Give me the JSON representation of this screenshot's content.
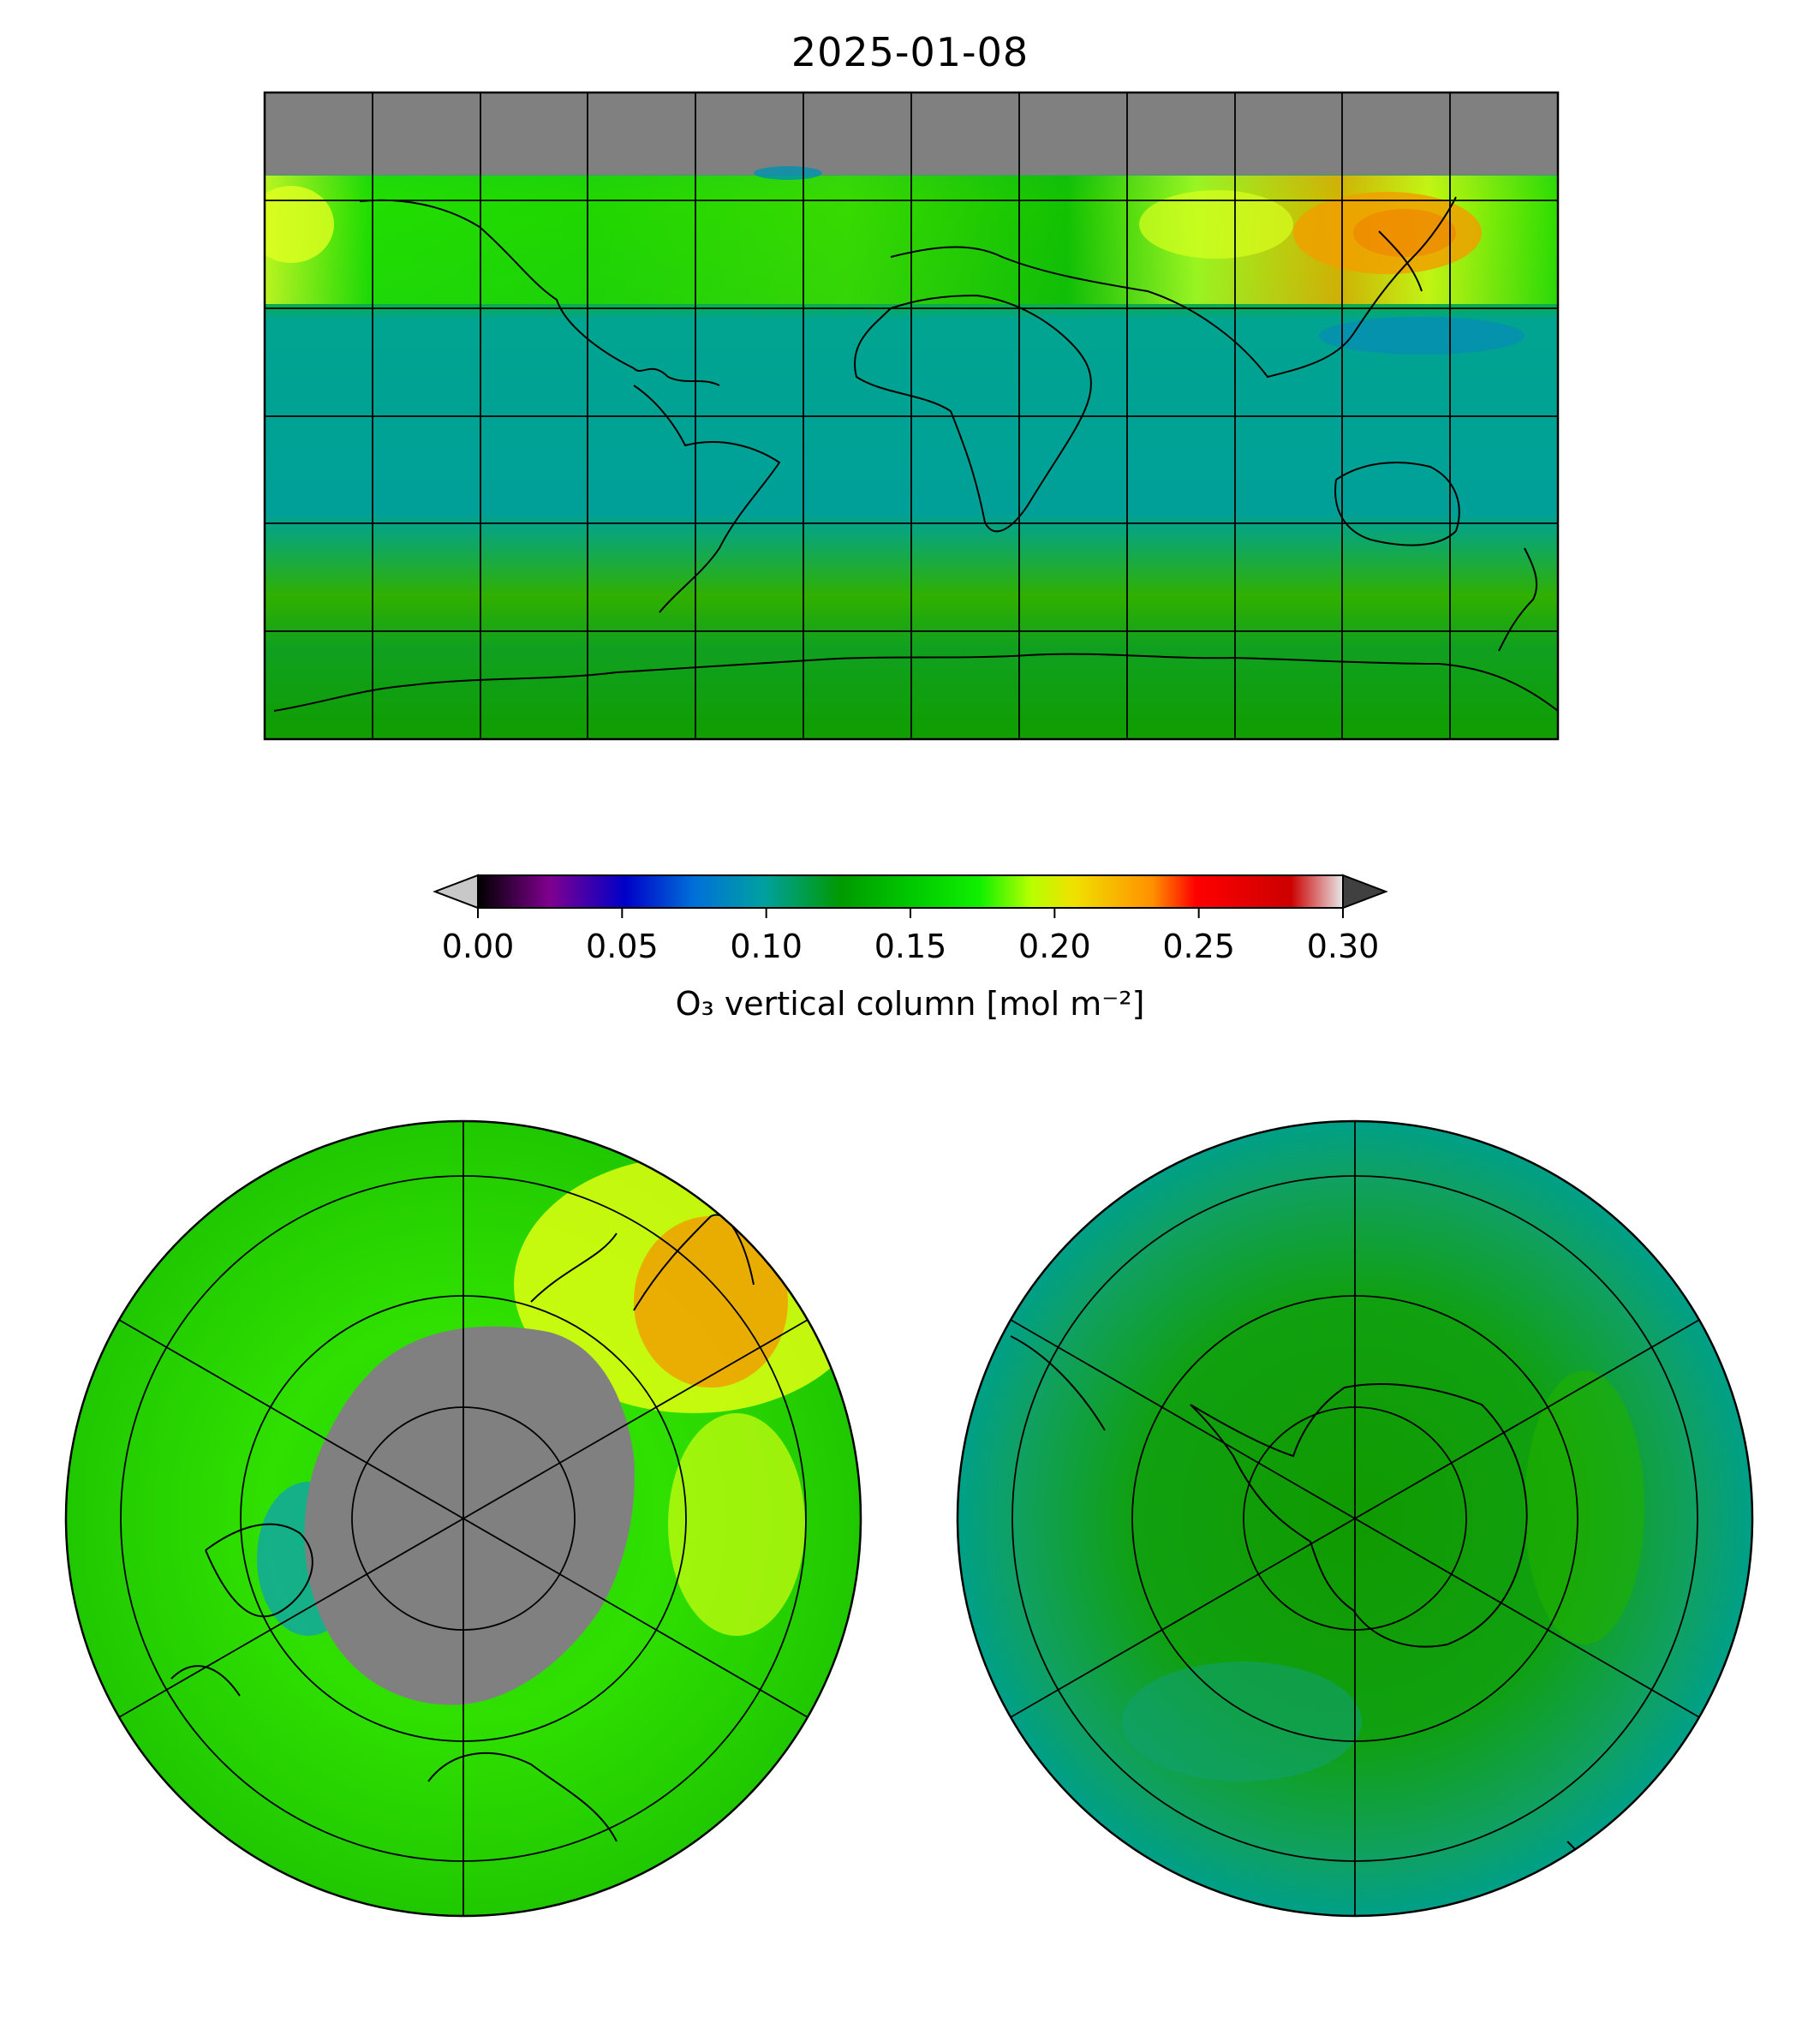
{
  "title": "2025-01-08",
  "colorbar": {
    "label": "O₃ vertical column [mol m⁻²]",
    "min": 0.0,
    "max": 0.3,
    "ticks": [
      "0.00",
      "0.05",
      "0.10",
      "0.15",
      "0.20",
      "0.25",
      "0.30"
    ],
    "extend": "both",
    "under_color": "#c8c8c8",
    "over_color": "#404040",
    "colormap": [
      "#000000",
      "#80008f",
      "#0000c8",
      "#0080d8",
      "#00a0a0",
      "#009900",
      "#00e000",
      "#b8ff00",
      "#f0e000",
      "#ff9900",
      "#ff0000",
      "#cc0000",
      "#e0e0e0"
    ]
  },
  "maps": {
    "global": {
      "projection": "plate-carree",
      "no_data_color": "#808080",
      "ocean_color": "#00a090"
    },
    "north_polar": {
      "projection": "north-polar-stereographic",
      "no_data_color": "#808080"
    },
    "south_polar": {
      "projection": "south-polar-stereographic"
    }
  }
}
